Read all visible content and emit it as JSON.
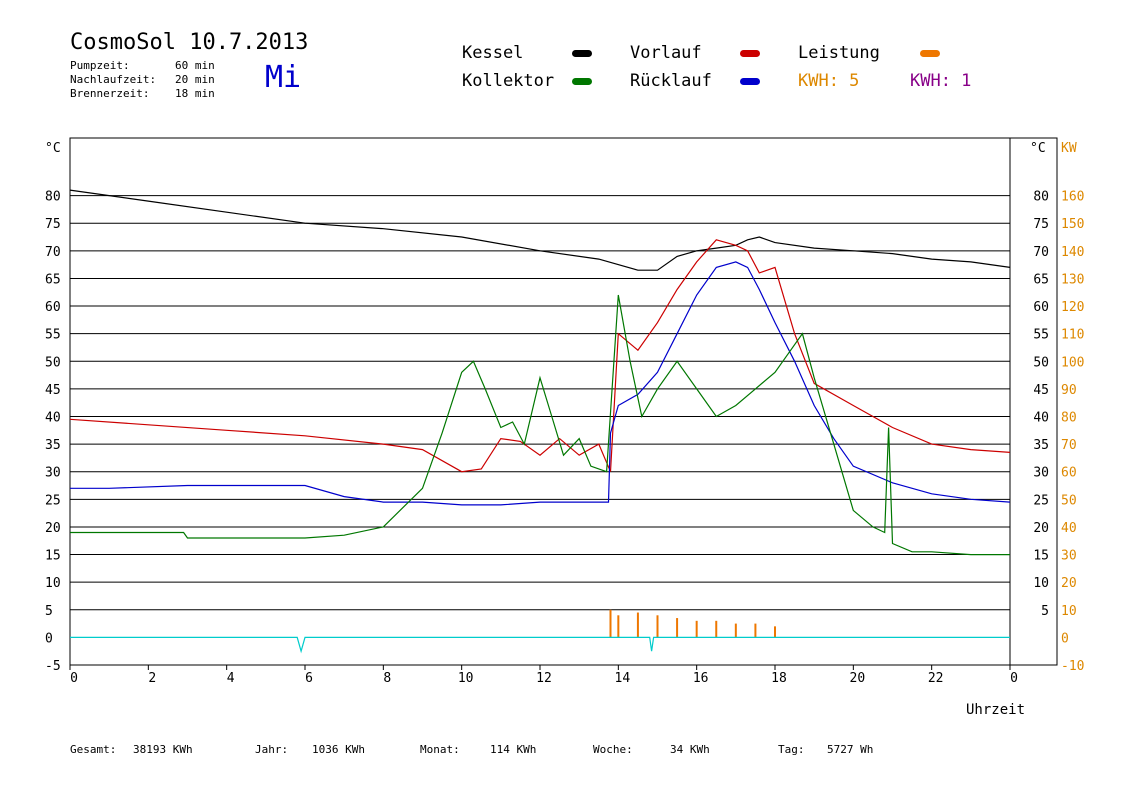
{
  "header": {
    "title": "CosmoSol 10.7.2013",
    "day": "Mi",
    "info": [
      {
        "label": "Pumpzeit:",
        "value": "60 min"
      },
      {
        "label": "Nachlaufzeit:",
        "value": "20 min"
      },
      {
        "label": "Brennerzeit:",
        "value": "18 min"
      }
    ]
  },
  "legend": {
    "kessel": "Kessel",
    "kollektor": "Kollektor",
    "vorlauf": "Vorlauf",
    "ruecklauf": "Rücklauf",
    "leistung": "Leistung",
    "kwh1": "KWH: 5",
    "kwh2": "KWH: 1"
  },
  "footer": [
    {
      "label": "Gesamt:",
      "value": "38193 KWh"
    },
    {
      "label": "Jahr:",
      "value": "1036 KWh"
    },
    {
      "label": "Monat:",
      "value": "114 KWh"
    },
    {
      "label": "Woche:",
      "value": "34 KWh"
    },
    {
      "label": "Tag:",
      "value": "5727 Wh"
    }
  ],
  "colors": {
    "kessel": "#000000",
    "kollektor": "#007700",
    "vorlauf": "#cc0000",
    "ruecklauf": "#0000cc",
    "leistung": "#ee7700",
    "kwh2": "#880088",
    "pump": "#00cccc",
    "axis_right_kw": "#dd8800"
  },
  "chart_data": {
    "type": "line",
    "xlabel": "Uhrzeit",
    "ylabel_left": "°C",
    "ylabel_right_temp": "°C",
    "ylabel_right_power": "KW",
    "xlim": [
      0,
      24
    ],
    "ylim": [
      -5,
      85
    ],
    "x_ticks": [
      "0",
      "2",
      "4",
      "6",
      "8",
      "10",
      "12",
      "14",
      "16",
      "18",
      "20",
      "22",
      "0"
    ],
    "y_ticks_left": [
      "80",
      "75",
      "70",
      "65",
      "60",
      "55",
      "50",
      "45",
      "40",
      "35",
      "30",
      "25",
      "20",
      "15",
      "10",
      "5",
      "0",
      "-5"
    ],
    "y_ticks_right": [
      "80",
      "75",
      "70",
      "65",
      "60",
      "55",
      "50",
      "45",
      "40",
      "35",
      "30",
      "25",
      "20",
      "15",
      "10",
      "5"
    ],
    "kw_ticks": [
      "160",
      "150",
      "140",
      "130",
      "120",
      "110",
      "100",
      "90",
      "80",
      "70",
      "60",
      "50",
      "40",
      "30",
      "20",
      "10",
      "0",
      "-10"
    ],
    "series": [
      {
        "name": "Kessel",
        "x": [
          0,
          2,
          4,
          6,
          8,
          10,
          12,
          13.5,
          14.5,
          15,
          15.5,
          16,
          16.5,
          17,
          17.3,
          17.6,
          18,
          19,
          20,
          21,
          22,
          23,
          24
        ],
        "y": [
          81,
          79,
          77,
          75,
          74,
          72.5,
          70,
          68.5,
          66.5,
          66.5,
          69,
          70,
          70.5,
          71,
          72,
          72.5,
          71.5,
          70.5,
          70,
          69.5,
          68.5,
          68,
          67
        ]
      },
      {
        "name": "Vorlauf",
        "x": [
          0,
          2,
          4,
          6,
          8,
          9,
          10,
          10.5,
          11,
          11.5,
          12,
          12.5,
          13,
          13.5,
          13.8,
          14,
          14.5,
          15,
          15.5,
          16,
          16.5,
          17,
          17.3,
          17.6,
          18,
          18.5,
          19,
          20,
          21,
          22,
          23,
          24
        ],
        "y": [
          39.5,
          38.5,
          37.5,
          36.5,
          35,
          34,
          30,
          30.5,
          36,
          35.5,
          33,
          36,
          33,
          35,
          30,
          55,
          52,
          57,
          63,
          68,
          72,
          71,
          70,
          66,
          67,
          55,
          46,
          42,
          38,
          35,
          34,
          33.5
        ]
      },
      {
        "name": "Rücklauf",
        "x": [
          0,
          1,
          3,
          6,
          7,
          8,
          9,
          10,
          11,
          12,
          13,
          13.75,
          13.8,
          14,
          14.5,
          15,
          15.5,
          16,
          16.5,
          17,
          17.3,
          17.6,
          18,
          18.5,
          19,
          19.5,
          20,
          21,
          22,
          23,
          24
        ],
        "y": [
          27,
          27,
          27.5,
          27.5,
          25.5,
          24.5,
          24.5,
          24,
          24,
          24.5,
          24.5,
          24.5,
          37,
          42,
          44,
          48,
          55,
          62,
          67,
          68,
          67,
          63,
          57,
          50,
          42,
          36,
          31,
          28,
          26,
          25,
          24.5
        ]
      },
      {
        "name": "Kollektor",
        "x": [
          0,
          1,
          2,
          2.9,
          3,
          5,
          5.6,
          6,
          7,
          8,
          9,
          9.5,
          10,
          10.3,
          10.6,
          11,
          11.3,
          11.6,
          12,
          12.3,
          12.6,
          13,
          13.3,
          13.7,
          14,
          14.3,
          14.6,
          15,
          15.5,
          16,
          16.5,
          17,
          17.5,
          18,
          18.4,
          18.7,
          19,
          19.5,
          20,
          20.5,
          20.8,
          20.9,
          21,
          21.5,
          22,
          23,
          24
        ],
        "y": [
          19,
          19,
          19,
          19,
          18,
          18,
          18,
          18,
          18.5,
          20,
          27,
          37,
          48,
          50,
          45,
          38,
          39,
          35,
          47,
          40,
          33,
          36,
          31,
          30,
          62,
          50,
          40,
          45,
          50,
          45,
          40,
          42,
          45,
          48,
          52,
          55,
          47,
          35,
          23,
          20,
          19,
          38,
          17,
          15.5,
          15.5,
          15,
          15
        ]
      },
      {
        "name": "Leistung",
        "x": [
          13.8,
          14,
          14.5,
          15,
          15.5,
          16,
          16.5,
          17,
          17.5,
          18
        ],
        "y": [
          5,
          4,
          4.5,
          4,
          3.5,
          3,
          3,
          2.5,
          2.5,
          2
        ]
      },
      {
        "name": "Pumpe",
        "x": [
          0,
          5.8,
          5.9,
          6,
          14.8,
          14.85,
          14.9,
          24
        ],
        "y": [
          0,
          0,
          -2.5,
          0,
          0,
          -2.5,
          0,
          0
        ]
      }
    ]
  }
}
